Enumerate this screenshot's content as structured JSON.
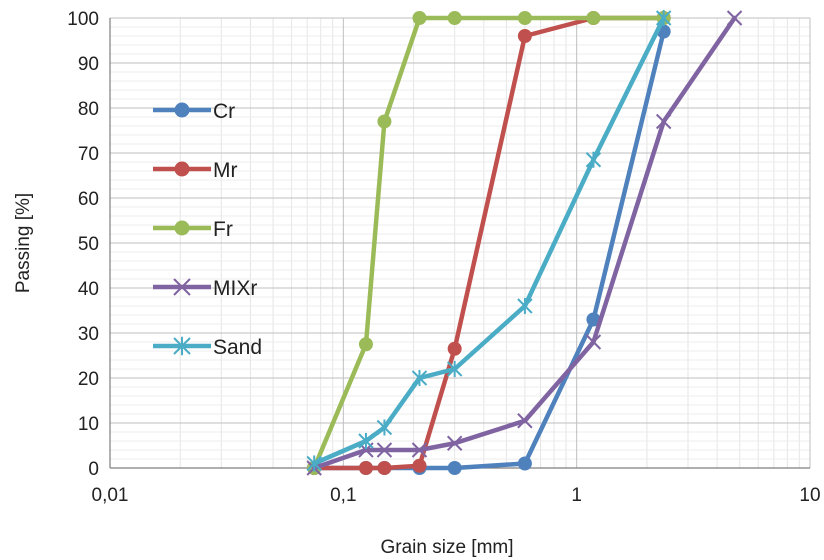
{
  "chart_data": {
    "type": "line",
    "x_scale": "log",
    "xlabel": "Grain size [mm]",
    "ylabel": "Passing [%]",
    "xlim": [
      0.01,
      10
    ],
    "ylim": [
      0,
      100
    ],
    "x_ticks": [
      0.01,
      0.1,
      1,
      10
    ],
    "x_tick_labels": [
      "0,01",
      "0,1",
      "1",
      "10"
    ],
    "y_ticks": [
      0,
      10,
      20,
      30,
      40,
      50,
      60,
      70,
      80,
      90,
      100
    ],
    "y_tick_labels": [
      "0",
      "10",
      "20",
      "30",
      "40",
      "50",
      "60",
      "70",
      "80",
      "90",
      "100"
    ],
    "grid": true,
    "legend_position": "left",
    "series": [
      {
        "name": "Cr",
        "color": "#4f81bd",
        "marker": "circle",
        "x": [
          0.075,
          0.125,
          0.15,
          0.212,
          0.3,
          0.6,
          1.18,
          2.36
        ],
        "y": [
          0,
          0,
          0,
          0,
          0,
          1,
          33,
          97
        ]
      },
      {
        "name": "Mr",
        "color": "#c0504d",
        "marker": "circle",
        "x": [
          0.075,
          0.125,
          0.15,
          0.212,
          0.3,
          0.6,
          1.18,
          2.36
        ],
        "y": [
          0,
          0,
          0,
          0.5,
          26.5,
          96,
          100,
          100
        ]
      },
      {
        "name": "Fr",
        "color": "#9bbb59",
        "marker": "circle",
        "x": [
          0.075,
          0.125,
          0.15,
          0.212,
          0.3,
          0.6,
          1.18,
          2.36
        ],
        "y": [
          0,
          27.5,
          77,
          100,
          100,
          100,
          100,
          100
        ]
      },
      {
        "name": "MIXr",
        "color": "#8064a2",
        "marker": "x",
        "x": [
          0.075,
          0.125,
          0.15,
          0.212,
          0.3,
          0.6,
          1.18,
          2.36,
          4.75
        ],
        "y": [
          0,
          4,
          4,
          4,
          5.5,
          10.5,
          28,
          77,
          100
        ]
      },
      {
        "name": "Sand",
        "color": "#4bacc6",
        "marker": "star",
        "x": [
          0.075,
          0.125,
          0.15,
          0.212,
          0.3,
          0.6,
          1.18,
          2.36
        ],
        "y": [
          1,
          6,
          9,
          20,
          22,
          36,
          68.5,
          100
        ]
      }
    ]
  }
}
